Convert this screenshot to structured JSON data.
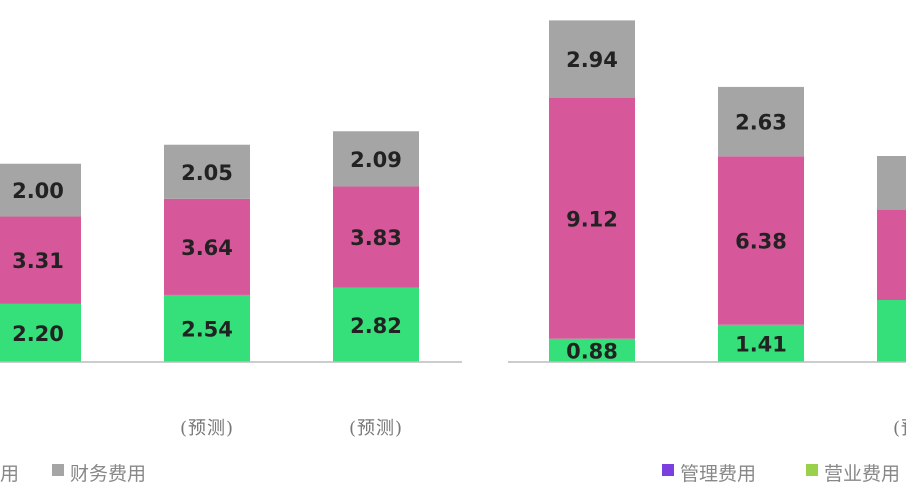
{
  "chart_data": {
    "type": "bar",
    "stacked": true,
    "categories": [
      "",
      "(预测)",
      "(预测)",
      "",
      "",
      "(预测)"
    ],
    "series": [
      {
        "name": "营业费用",
        "color": "#35e07a",
        "values": [
          2.2,
          2.54,
          2.82,
          0.88,
          1.41,
          null
        ]
      },
      {
        "name": "管理费用",
        "color": "#d6589a",
        "values": [
          3.31,
          3.64,
          3.83,
          9.12,
          6.38,
          null
        ]
      },
      {
        "name": "财务费用",
        "color": "#a5a5a5",
        "values": [
          2.0,
          2.05,
          2.09,
          2.94,
          2.63,
          null
        ]
      }
    ],
    "legend": [
      {
        "label": "财务费用",
        "color": "#a5a5a5"
      },
      {
        "label": "管理费用",
        "color": "#7b3fe0"
      },
      {
        "label": "营业费用",
        "color": "#9ad14a"
      }
    ],
    "legend_position": "bottom",
    "fragments": {
      "left_legend_tail": "用"
    },
    "title": "",
    "xlabel": "",
    "ylabel": "",
    "ylim": [
      0,
      13
    ]
  }
}
